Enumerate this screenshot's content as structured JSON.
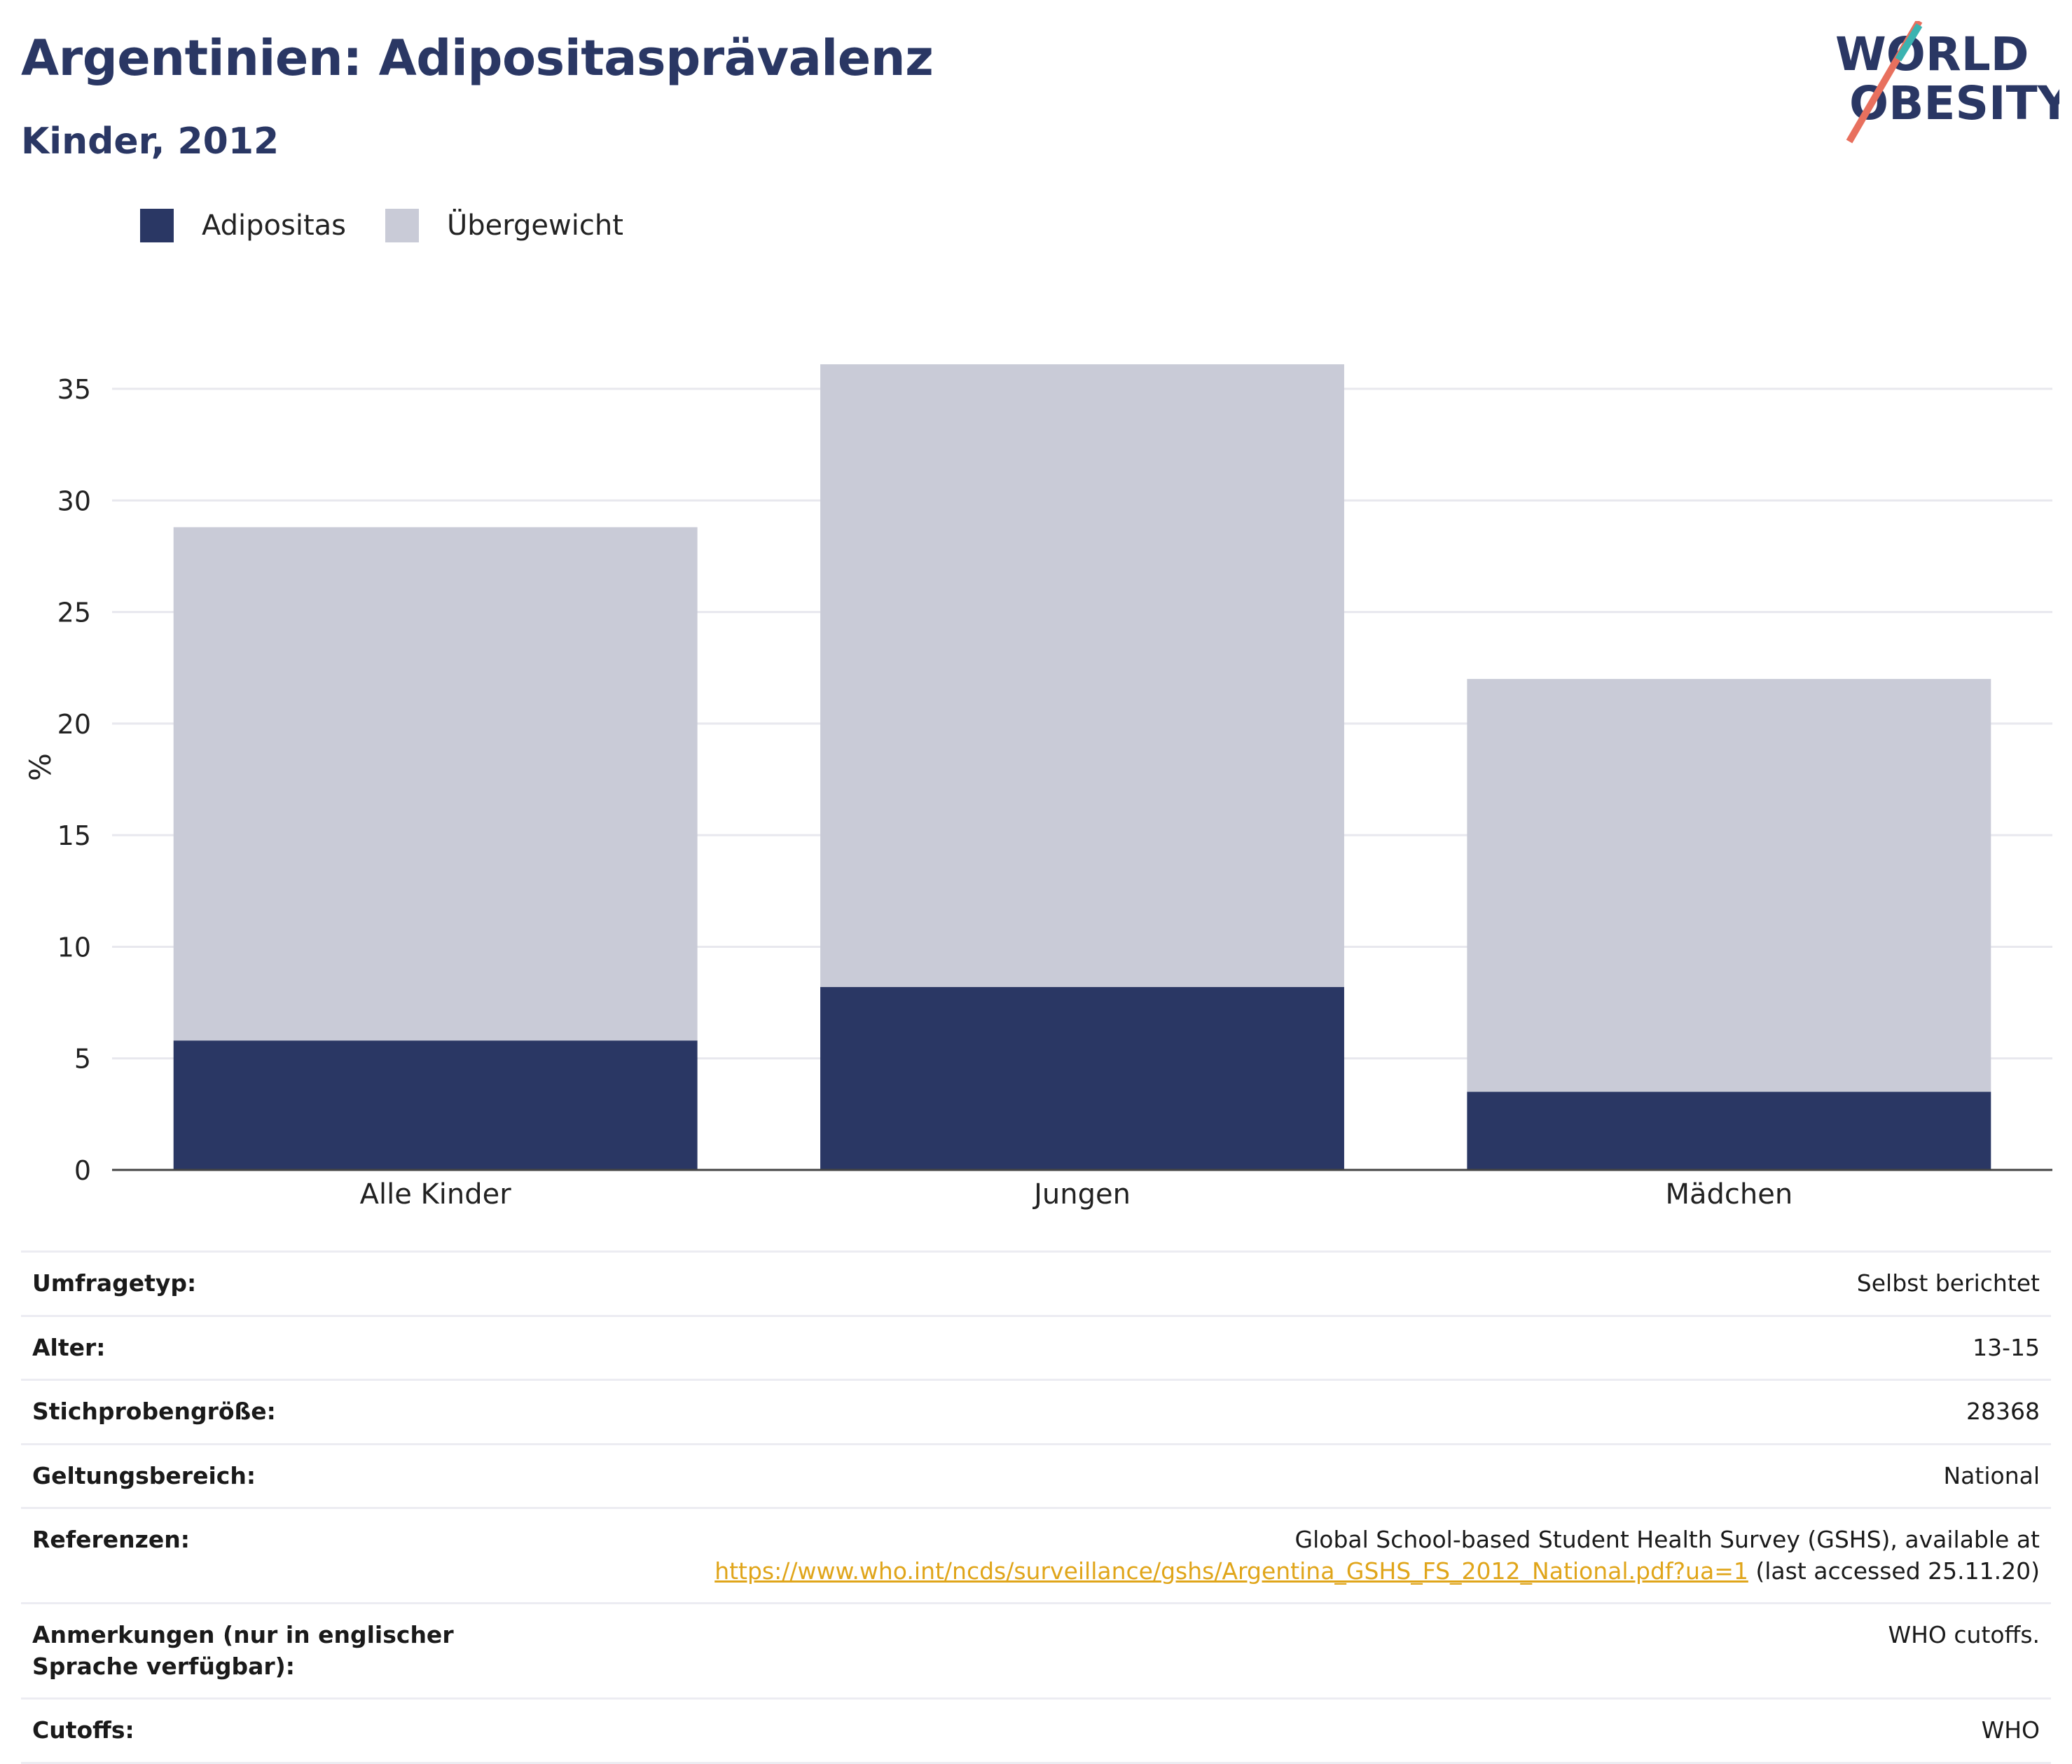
{
  "header": {
    "title": "Argentinien: Adipositasprävalenz",
    "subtitle": "Kinder, 2012",
    "logo_text_line1": "WORLD",
    "logo_text_line2": "OBESITY"
  },
  "legend": [
    {
      "label": "Adipositas",
      "color": "#2a3764"
    },
    {
      "label": "Übergewicht",
      "color": "#c9cbd7"
    }
  ],
  "chart_data": {
    "type": "bar",
    "stacked": true,
    "categories": [
      "Alle Kinder",
      "Jungen",
      "Mädchen"
    ],
    "series": [
      {
        "name": "Adipositas",
        "values": [
          5.8,
          8.2,
          3.5
        ],
        "color": "#2a3764"
      },
      {
        "name": "Übergewicht",
        "values": [
          23.0,
          27.9,
          18.5
        ],
        "color": "#c9cbd7"
      }
    ],
    "totals": [
      28.8,
      36.1,
      22.0
    ],
    "ylabel": "%",
    "ylim": [
      0,
      36.1
    ],
    "yticks": [
      0,
      5,
      10,
      15,
      20,
      25,
      30,
      35
    ],
    "grid": true,
    "legend_position": "top-left"
  },
  "info_table": [
    {
      "key": "Umfragetyp:",
      "value": "Selbst berichtet"
    },
    {
      "key": "Alter:",
      "value": "13-15"
    },
    {
      "key": "Stichprobengröße:",
      "value": "28368"
    },
    {
      "key": "Geltungsbereich:",
      "value": "National"
    },
    {
      "key": "Referenzen:",
      "value_prefix": "Global School-based Student Health Survey (GSHS), available at",
      "link": "https://www.who.int/ncds/surveillance/gshs/Argentina_GSHS_FS_2012_National.pdf?ua=1",
      "value_suffix": "(last accessed 25.11.20)"
    },
    {
      "key": "Anmerkungen (nur in englischer Sprache verfügbar):",
      "value": "WHO cutoffs."
    },
    {
      "key": "Cutoffs:",
      "value": "WHO"
    }
  ]
}
